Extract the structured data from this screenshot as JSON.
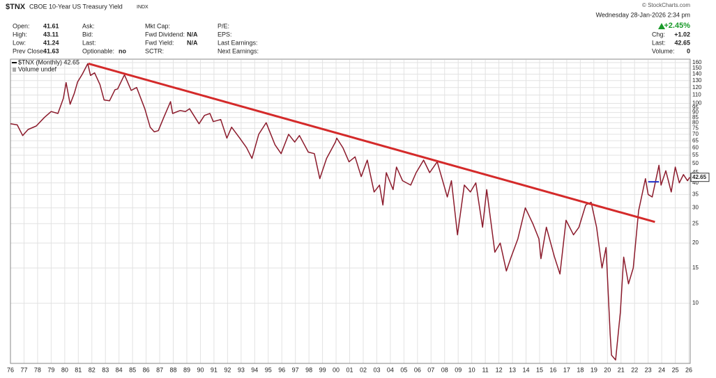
{
  "header": {
    "symbol": "$TNX",
    "name": "CBOE 10-Year US Treasury Yield",
    "exchange": "INDX",
    "copyright": "© StockCharts.com",
    "datetime": "Wednesday 28-Jan-2026 2:34 pm",
    "change_pct": "+2.45%",
    "columns": [
      [
        {
          "label": "Open:",
          "value": "41.61"
        },
        {
          "label": "High:",
          "value": "43.11"
        },
        {
          "label": "Low:",
          "value": "41.24"
        },
        {
          "label": "Prev Close:",
          "value": "41.63"
        }
      ],
      [
        {
          "label": "Ask:"
        },
        {
          "label": "Bid:"
        },
        {
          "label": "Last:"
        },
        {
          "label": "Optionable:",
          "value": "no"
        }
      ],
      [
        {
          "label": "Mkt Cap:"
        },
        {
          "label": "Fwd Dividend:",
          "value": "N/A"
        },
        {
          "label": "Fwd Yield:",
          "value": "N/A"
        },
        {
          "label": "SCTR:"
        }
      ],
      [
        {
          "label": "P/E:"
        },
        {
          "label": "EPS:"
        },
        {
          "label": "Last Earnings:"
        },
        {
          "label": "Next Earnings:"
        }
      ]
    ],
    "right": [
      {
        "label": "Chg:",
        "value": "+1.02"
      },
      {
        "label": "Last:",
        "value": "42.65"
      },
      {
        "label": "Volume:",
        "value": "0"
      }
    ]
  },
  "chart_data": {
    "type": "line",
    "legend": [
      "$TNX (Monthly) 42.65",
      "Volume undef"
    ],
    "log_scale": true,
    "grid": true,
    "color": "#8b1a2b",
    "last_label": 42.65,
    "x": [
      1976.0,
      1976.5,
      1976.9,
      1977.3,
      1977.9,
      1978.5,
      1979.0,
      1979.5,
      1979.9,
      1980.1,
      1980.4,
      1980.7,
      1980.95,
      1981.3,
      1981.7,
      1981.9,
      1982.2,
      1982.6,
      1982.9,
      1983.3,
      1983.7,
      1983.9,
      1984.4,
      1984.9,
      1985.3,
      1985.9,
      1986.3,
      1986.6,
      1986.9,
      1987.3,
      1987.8,
      1987.95,
      1988.5,
      1988.9,
      1989.2,
      1989.9,
      1990.3,
      1990.7,
      1990.95,
      1991.5,
      1991.95,
      1992.3,
      1992.9,
      1993.4,
      1993.8,
      1994.3,
      1994.85,
      1995.5,
      1995.95,
      1996.5,
      1996.95,
      1997.3,
      1997.95,
      1998.4,
      1998.8,
      1999.3,
      1999.95,
      2000.05,
      2000.5,
      2000.95,
      2001.4,
      2001.85,
      2002.3,
      2002.8,
      2003.2,
      2003.45,
      2003.7,
      2004.2,
      2004.45,
      2004.9,
      2005.5,
      2005.9,
      2006.45,
      2006.9,
      2007.45,
      2007.9,
      2008.2,
      2008.5,
      2008.95,
      2009.45,
      2009.9,
      2010.3,
      2010.8,
      2011.1,
      2011.7,
      2012.1,
      2012.55,
      2012.9,
      2013.4,
      2013.95,
      2014.5,
      2014.95,
      2015.1,
      2015.5,
      2016.1,
      2016.5,
      2016.95,
      2017.5,
      2017.9,
      2018.4,
      2018.8,
      2019.2,
      2019.6,
      2019.9,
      2020.2,
      2020.3,
      2020.6,
      2020.95,
      2021.2,
      2021.55,
      2021.9,
      2022.3,
      2022.8,
      2023.0,
      2023.3,
      2023.8,
      2023.95,
      2024.3,
      2024.7,
      2025.0,
      2025.3,
      2025.6,
      2025.9,
      2026.07
    ],
    "values": [
      79,
      78,
      69,
      74,
      77,
      85,
      91,
      89,
      106,
      127,
      99,
      112,
      128,
      140,
      158,
      138,
      142,
      124,
      104,
      103,
      117,
      118,
      139,
      116,
      120,
      94,
      76,
      72,
      73,
      85,
      102,
      89,
      92,
      91,
      94,
      79,
      87,
      89,
      81,
      83,
      67,
      76,
      67,
      60,
      53,
      70,
      80,
      62,
      56,
      70,
      64,
      69,
      57,
      56,
      42,
      53,
      64,
      67,
      60,
      51,
      54,
      43,
      52,
      36,
      39,
      31,
      45,
      37,
      48,
      41,
      39,
      45,
      52,
      45,
      51,
      40,
      34,
      41,
      22,
      39,
      36,
      40,
      24,
      37,
      18,
      20,
      14.5,
      17,
      21,
      30,
      25,
      21,
      16.7,
      24,
      17,
      14,
      26,
      22,
      24,
      31,
      32,
      24,
      15,
      19,
      7,
      5.5,
      5.2,
      9,
      17,
      12.5,
      15,
      29,
      42,
      35,
      34,
      49,
      39,
      46,
      36,
      48,
      40,
      44,
      41,
      42.65
    ],
    "annotations": [
      {
        "color": "#d42a2a",
        "x": [
          1981.75,
          2023.5
        ],
        "y": [
          158,
          25.5
        ]
      },
      {
        "color": "#2233cc",
        "x": [
          2023.0,
          2023.8
        ],
        "y": [
          40.5,
          40.5
        ]
      }
    ],
    "xlim": [
      1976,
      2026.1
    ],
    "ylim": [
      5,
      165
    ],
    "xticks": [
      {
        "value": 1976,
        "label": "76"
      },
      {
        "value": 1977,
        "label": "77"
      },
      {
        "value": 1978,
        "label": "78"
      },
      {
        "value": 1979,
        "label": "79"
      },
      {
        "value": 1980,
        "label": "80"
      },
      {
        "value": 1981,
        "label": "81"
      },
      {
        "value": 1982,
        "label": "82"
      },
      {
        "value": 1983,
        "label": "83"
      },
      {
        "value": 1984,
        "label": "84"
      },
      {
        "value": 1985,
        "label": "85"
      },
      {
        "value": 1986,
        "label": "86"
      },
      {
        "value": 1987,
        "label": "87"
      },
      {
        "value": 1988,
        "label": "88"
      },
      {
        "value": 1989,
        "label": "89"
      },
      {
        "value": 1990,
        "label": "90"
      },
      {
        "value": 1991,
        "label": "91"
      },
      {
        "value": 1992,
        "label": "92"
      },
      {
        "value": 1993,
        "label": "93"
      },
      {
        "value": 1994,
        "label": "94"
      },
      {
        "value": 1995,
        "label": "95"
      },
      {
        "value": 1996,
        "label": "96"
      },
      {
        "value": 1997,
        "label": "97"
      },
      {
        "value": 1998,
        "label": "98"
      },
      {
        "value": 1999,
        "label": "99"
      },
      {
        "value": 2000,
        "label": "00"
      },
      {
        "value": 2001,
        "label": "01"
      },
      {
        "value": 2002,
        "label": "02"
      },
      {
        "value": 2003,
        "label": "03"
      },
      {
        "value": 2004,
        "label": "04"
      },
      {
        "value": 2005,
        "label": "05"
      },
      {
        "value": 2006,
        "label": "06"
      },
      {
        "value": 2007,
        "label": "07"
      },
      {
        "value": 2008,
        "label": "08"
      },
      {
        "value": 2009,
        "label": "09"
      },
      {
        "value": 2010,
        "label": "10"
      },
      {
        "value": 2011,
        "label": "11"
      },
      {
        "value": 2012,
        "label": "12"
      },
      {
        "value": 2013,
        "label": "13"
      },
      {
        "value": 2014,
        "label": "14"
      },
      {
        "value": 2015,
        "label": "15"
      },
      {
        "value": 2016,
        "label": "16"
      },
      {
        "value": 2017,
        "label": "17"
      },
      {
        "value": 2018,
        "label": "18"
      },
      {
        "value": 2019,
        "label": "19"
      },
      {
        "value": 2020,
        "label": "20"
      },
      {
        "value": 2021,
        "label": "21"
      },
      {
        "value": 2022,
        "label": "22"
      },
      {
        "value": 2023,
        "label": "23"
      },
      {
        "value": 2024,
        "label": "24"
      },
      {
        "value": 2025,
        "label": "25"
      },
      {
        "value": 2026,
        "label": "26"
      }
    ],
    "yticks": [
      10,
      15,
      20,
      25,
      30,
      35,
      40,
      45,
      50,
      55,
      60,
      65,
      70,
      75,
      80,
      85,
      90,
      95,
      100,
      110,
      120,
      130,
      140,
      150,
      160
    ]
  }
}
